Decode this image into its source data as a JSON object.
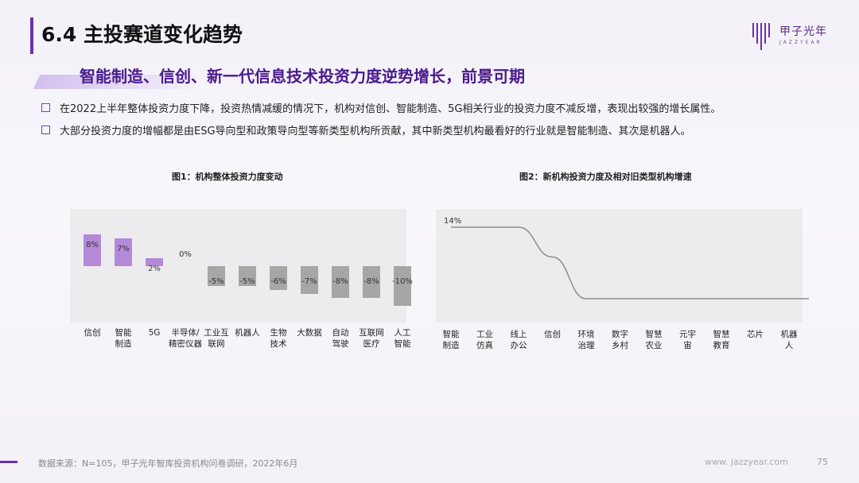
{
  "page": {
    "title": "6.4 主投赛道变化趋势",
    "subtitle": "智能制造、信创、新一代信息技术投资力度逆势增长，前景可期",
    "bullets": [
      "在2022上半年整体投资力度下降，投资热情减缓的情况下，机构对信创、智能制造、5G相关行业的投资力度不减反增，表现出较强的增长属性。",
      "大部分投资力度的增幅都是由ESG导向型和政策导向型等新类型机构所贡献，其中新类型机构最看好的行业就是智能制造、其次是机器人。"
    ],
    "source": "数据来源：N=105，甲子光年智库投资机构问卷调研，2022年6月",
    "site": "www. jazzyear.com",
    "page_number": "75",
    "logo": {
      "name": "甲子光年",
      "sub": "JAZZYEAR"
    },
    "colors": {
      "accent": "#6b2fb3",
      "positive_bar": "#b48ad8",
      "negative_bar": "#a6a6a6",
      "line": "#8c8c8c"
    }
  },
  "chart_data": [
    {
      "type": "bar",
      "title": "图1：机构整体投资力度变动",
      "categories": [
        "信创",
        "智能制造",
        "5G",
        "半导体/精密仪器",
        "工业互联网",
        "机器人",
        "生物技术",
        "大数据",
        "自动驾驶",
        "互联网医疗",
        "人工智能"
      ],
      "category_lines": [
        [
          "信创"
        ],
        [
          "智能",
          "制造"
        ],
        [
          "5G"
        ],
        [
          "半导体/",
          "精密仪器"
        ],
        [
          "工业互",
          "联网"
        ],
        [
          "机器人"
        ],
        [
          "生物",
          "技术"
        ],
        [
          "大数据"
        ],
        [
          "自动",
          "驾驶"
        ],
        [
          "互联网",
          "医疗"
        ],
        [
          "人工",
          "智能"
        ]
      ],
      "values": [
        8,
        7,
        2,
        0,
        -5,
        -5,
        -6,
        -7,
        -8,
        -8,
        -10
      ],
      "value_labels": [
        "8%",
        "7%",
        "2%",
        "0%",
        "-5%",
        "-5%",
        "-6%",
        "-7%",
        "-8%",
        "-8%",
        "-10%"
      ],
      "ylim": [
        -10,
        8
      ]
    },
    {
      "type": "line",
      "title": "图2：新机构投资力度及相对旧类型机构增速",
      "categories": [
        "智能制造",
        "工业仿真",
        "线上办公",
        "信创",
        "环境治理",
        "数字乡村",
        "智慧农业",
        "元宇宙",
        "智慧教育",
        "芯片",
        "机器人"
      ],
      "category_lines": [
        [
          "智能",
          "制造"
        ],
        [
          "工业",
          "仿真"
        ],
        [
          "线上",
          "办公"
        ],
        [
          "信创"
        ],
        [
          "环境",
          "治理"
        ],
        [
          "数字",
          "乡村"
        ],
        [
          "智慧",
          "农业"
        ],
        [
          "元宇",
          "宙"
        ],
        [
          "智慧",
          "教育"
        ],
        [
          "芯片"
        ],
        [
          "机器",
          "人"
        ]
      ],
      "values": [
        14,
        14,
        14,
        9,
        2,
        2,
        2,
        2,
        2,
        2,
        2
      ],
      "labeled_point": {
        "index": 0,
        "label": "14%"
      }
    }
  ]
}
